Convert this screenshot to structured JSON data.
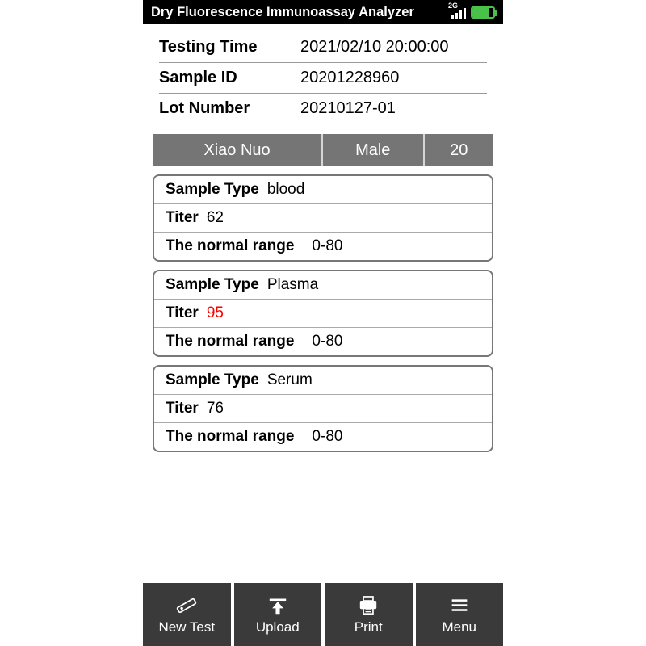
{
  "status": {
    "title": "Dry Fluorescence Immunoassay Analyzer",
    "network": "2G",
    "battery_pct": 80,
    "battery_color": "#4ac24a"
  },
  "meta": {
    "testing_time_label": "Testing Time",
    "testing_time_value": "2021/02/10  20:00:00",
    "sample_id_label": "Sample ID",
    "sample_id_value": "20201228960",
    "lot_number_label": "Lot Number",
    "lot_number_value": "20210127-01"
  },
  "patient": {
    "name": "Xiao  Nuo",
    "sex": "Male",
    "age": "20"
  },
  "labels": {
    "sample_type": "Sample Type",
    "titer": "Titer",
    "normal_range": "The normal range"
  },
  "results": [
    {
      "sample_type": "blood",
      "titer": "62",
      "normal_range": "0-80",
      "abnormal": false
    },
    {
      "sample_type": "Plasma",
      "titer": "95",
      "normal_range": "0-80",
      "abnormal": true
    },
    {
      "sample_type": "Serum",
      "titer": "76",
      "normal_range": "0-80",
      "abnormal": false
    }
  ],
  "nav": {
    "new_test": "New Test",
    "upload": "Upload",
    "print": "Print",
    "menu": "Menu"
  },
  "colors": {
    "header_bg": "#000000",
    "patient_bar_bg": "#757575",
    "nav_bg": "#3a3a3a",
    "abnormal": "#ff0000",
    "card_border": "#777777"
  }
}
